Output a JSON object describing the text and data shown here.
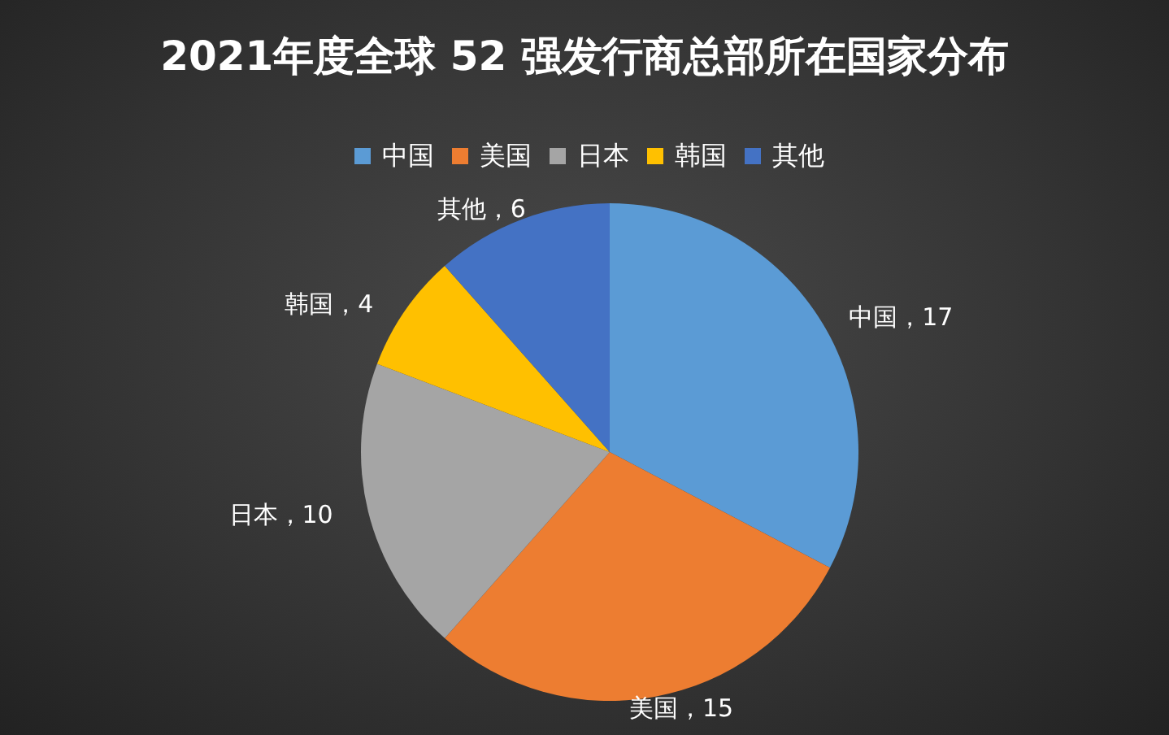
{
  "chart_data": {
    "type": "pie",
    "title": "2021年度全球 52 强发行商总部所在国家分布",
    "categories": [
      "中国",
      "美国",
      "日本",
      "韩国",
      "其他"
    ],
    "values": [
      17,
      15,
      10,
      4,
      6
    ],
    "colors": [
      "#5b9bd5",
      "#ed7d31",
      "#a5a5a5",
      "#ffc000",
      "#4472c4"
    ],
    "value_labels": [
      "中国，17",
      "美国，15",
      "日本，10",
      "韩国，4",
      "其他，6"
    ],
    "legend": "top"
  }
}
